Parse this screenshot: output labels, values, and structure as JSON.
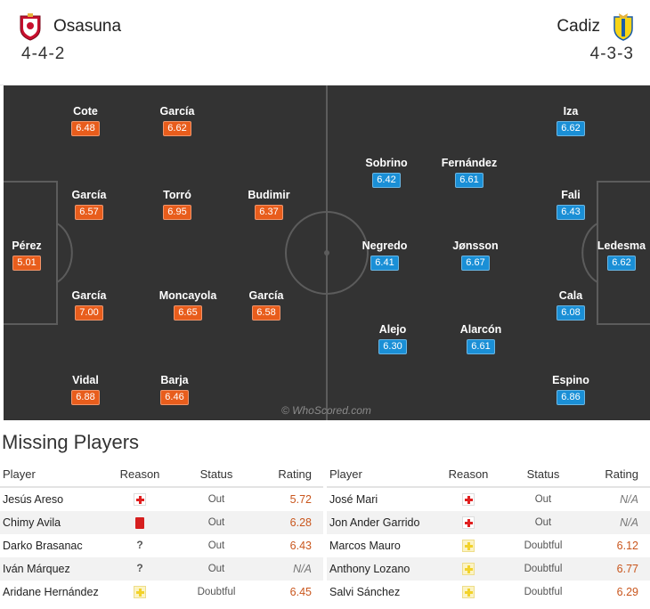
{
  "home": {
    "name": "Osasuna",
    "formation": "4-4-2",
    "crest_icon": "osasuna-crest-icon",
    "rating_color": "#e85d1c"
  },
  "away": {
    "name": "Cadiz",
    "formation": "4-3-3",
    "crest_icon": "cadiz-crest-icon",
    "rating_color": "#1a8fd6"
  },
  "pitch": {
    "background": "#333333",
    "watermark": "© WhoScored.com"
  },
  "home_players": [
    {
      "name": "Cote",
      "rating": "6.48"
    },
    {
      "name": "García",
      "rating": "6.62"
    },
    {
      "name": "García",
      "rating": "6.57"
    },
    {
      "name": "Torró",
      "rating": "6.95"
    },
    {
      "name": "Budimir",
      "rating": "6.37"
    },
    {
      "name": "Pérez",
      "rating": "5.01"
    },
    {
      "name": "García",
      "rating": "7.00"
    },
    {
      "name": "Moncayola",
      "rating": "6.65"
    },
    {
      "name": "García",
      "rating": "6.58"
    },
    {
      "name": "Vidal",
      "rating": "6.88"
    },
    {
      "name": "Barja",
      "rating": "6.46"
    }
  ],
  "away_players": [
    {
      "name": "Iza",
      "rating": "6.62"
    },
    {
      "name": "Sobrino",
      "rating": "6.42"
    },
    {
      "name": "Fernández",
      "rating": "6.61"
    },
    {
      "name": "Fali",
      "rating": "6.43"
    },
    {
      "name": "Negredo",
      "rating": "6.41"
    },
    {
      "name": "Jønsson",
      "rating": "6.67"
    },
    {
      "name": "Ledesma",
      "rating": "6.62"
    },
    {
      "name": "Cala",
      "rating": "6.08"
    },
    {
      "name": "Alejo",
      "rating": "6.30"
    },
    {
      "name": "Alarcón",
      "rating": "6.61"
    },
    {
      "name": "Espino",
      "rating": "6.86"
    }
  ],
  "missing": {
    "title": "Missing Players",
    "headers": {
      "player": "Player",
      "reason": "Reason",
      "status": "Status",
      "rating": "Rating"
    },
    "home": [
      {
        "player": "Jesús Areso",
        "reason_icon": "injury-icon",
        "status": "Out",
        "rating": "5.72"
      },
      {
        "player": "Chimy Avila",
        "reason_icon": "red-card-icon",
        "status": "Out",
        "rating": "6.28"
      },
      {
        "player": "Darko Brasanac",
        "reason_icon": "unknown-reason-icon",
        "reason_text": "?",
        "status": "Out",
        "rating": "6.43"
      },
      {
        "player": "Iván Márquez",
        "reason_icon": "unknown-reason-icon",
        "reason_text": "?",
        "status": "Out",
        "rating": "N/A"
      },
      {
        "player": "Aridane Hernández",
        "reason_icon": "doubtful-icon",
        "status": "Doubtful",
        "rating": "6.45"
      }
    ],
    "away": [
      {
        "player": "José Mari",
        "reason_icon": "injury-icon",
        "status": "Out",
        "rating": "N/A"
      },
      {
        "player": "Jon Ander Garrido",
        "reason_icon": "injury-icon",
        "status": "Out",
        "rating": "N/A"
      },
      {
        "player": "Marcos Mauro",
        "reason_icon": "doubtful-icon",
        "status": "Doubtful",
        "rating": "6.12"
      },
      {
        "player": "Anthony Lozano",
        "reason_icon": "doubtful-icon",
        "status": "Doubtful",
        "rating": "6.77"
      },
      {
        "player": "Salvi Sánchez",
        "reason_icon": "doubtful-icon",
        "status": "Doubtful",
        "rating": "6.29"
      }
    ]
  }
}
